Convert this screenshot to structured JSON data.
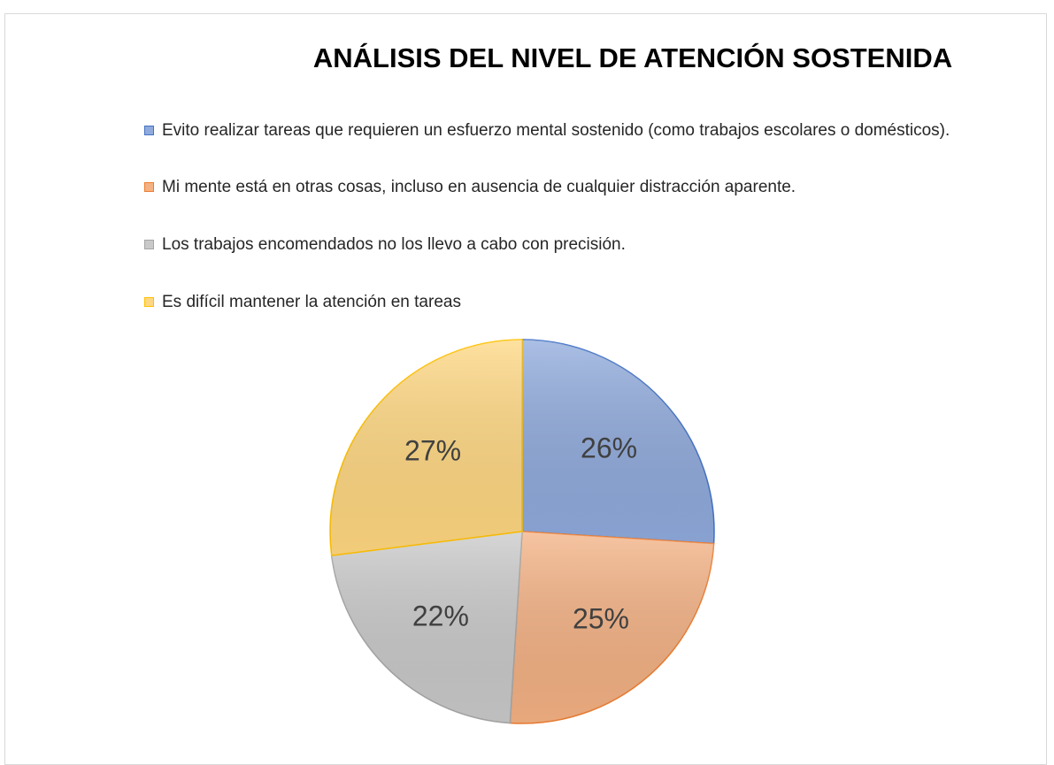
{
  "chart_data": {
    "type": "pie",
    "title": "ANÁLISIS DEL NIVEL DE ATENCIÓN SOSTENIDA",
    "categories": [
      "Evito realizar tareas que requieren un esfuerzo mental sostenido (como trabajos escolares o domésticos).",
      "Mi mente está en otras cosas, incluso en ausencia de cualquier distracción aparente.",
      "Los trabajos encomendados no los llevo a cabo con precisión.",
      "Es difícil mantener la atención en tareas"
    ],
    "values": [
      26,
      25,
      22,
      27
    ],
    "value_labels": [
      "26%",
      "25%",
      "22%",
      "27%"
    ],
    "colors": [
      "#8faadc",
      "#f4b183",
      "#c9c9c9",
      "#ffd780"
    ],
    "border_colors": [
      "#4472c4",
      "#ed7d31",
      "#a5a5a5",
      "#ffc000"
    ]
  }
}
